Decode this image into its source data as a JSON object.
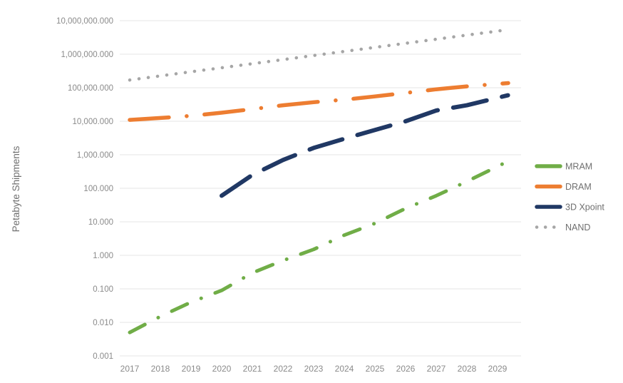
{
  "figure": {
    "background_color": "#ffffff",
    "tick_text_color": "#8a8a8a",
    "axis_title_color": "#6f6f6f",
    "legend_text_color": "#6f6f6f",
    "gridline_color": "#e4e4e4"
  },
  "chart_data": {
    "type": "line",
    "title": "",
    "xlabel": "",
    "ylabel": "Petabyte Shipments",
    "grid": "horizontal-major-only",
    "legend_position": "right",
    "x_axis": {
      "tick_labels": [
        "2017",
        "2018",
        "2019",
        "2020",
        "2021",
        "2022",
        "2023",
        "2024",
        "2025",
        "2026",
        "2027",
        "2028",
        "2029"
      ]
    },
    "y_axis": {
      "scale": "log",
      "min": 0.001,
      "max": 10000000,
      "tick_labels": [
        "10,000,000.000",
        "1,000,000.000",
        "100,000.000",
        "10,000.000",
        "1,000.000",
        "100.000",
        "10.000",
        "1.000",
        "0.100",
        "0.010",
        "0.001"
      ]
    },
    "series": [
      {
        "name": "MRAM",
        "color": "#70AD47",
        "dash_style": "dash-dot-short",
        "values": [
          0.005,
          0.015,
          0.04,
          0.09,
          0.3,
          0.7,
          1.5,
          4,
          9,
          25,
          60,
          160,
          450
        ]
      },
      {
        "name": "DRAM",
        "color": "#ED7D31",
        "dash_style": "dash-dot-long",
        "values": [
          11000,
          12500,
          14500,
          18000,
          23000,
          30000,
          37000,
          44000,
          55000,
          70000,
          90000,
          110000,
          130000
        ]
      },
      {
        "name": "3D Xpoint",
        "color": "#203864",
        "dash_style": "dash",
        "values": [
          null,
          null,
          null,
          60,
          250,
          700,
          1600,
          3000,
          5500,
          10000,
          21000,
          30000,
          50000
        ]
      },
      {
        "name": "NAND",
        "color": "#A6A6A6",
        "dash_style": "dot",
        "values": [
          170000,
          225000,
          300000,
          395000,
          520000,
          690000,
          915000,
          1210000,
          1600000,
          2120000,
          2800000,
          3710000,
          4900000
        ]
      }
    ]
  }
}
